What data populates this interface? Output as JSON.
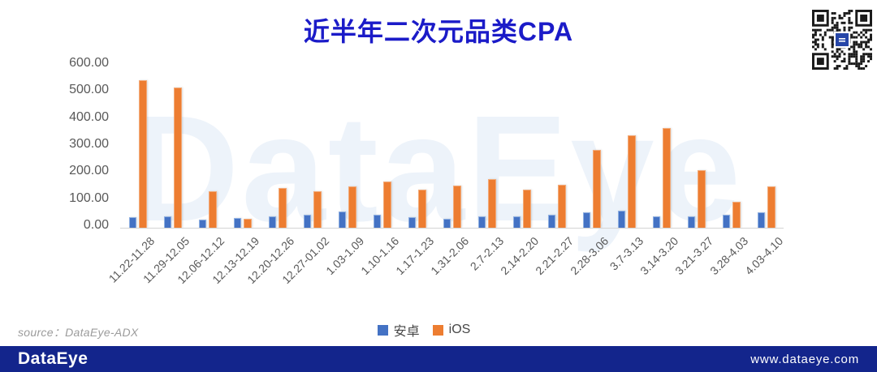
{
  "title": "近半年二次元品类CPA",
  "chart_data": {
    "type": "bar",
    "title": "近半年二次元品类CPA",
    "categories": [
      "11.22-11.28",
      "11.29-12.05",
      "12.06-12.12",
      "12.13-12.19",
      "12.20-12.26",
      "12.27-01.02",
      "1.03-1.09",
      "1.10-1.16",
      "1.17-1.23",
      "1.31-2.06",
      "2.7-2.13",
      "2.14-2.20",
      "2.21-2.27",
      "2.28-3.06",
      "3.7-3.13",
      "3.14-3.20",
      "3.21-3.27",
      "3.28-4.03",
      "4.03-4.10"
    ],
    "series": [
      {
        "name": "安卓",
        "color": "#4472C4",
        "values": [
          38,
          43,
          31,
          36,
          43,
          47,
          59,
          49,
          38,
          33,
          43,
          43,
          49,
          56,
          63,
          43,
          41,
          49,
          56
        ]
      },
      {
        "name": "iOS",
        "color": "#ED7D31",
        "values": [
          545,
          520,
          134,
          32,
          146,
          134,
          152,
          171,
          141,
          155,
          181,
          141,
          158,
          287,
          341,
          368,
          214,
          96,
          152
        ]
      }
    ],
    "ylim": [
      0,
      600
    ],
    "yticks": [
      0,
      100,
      200,
      300,
      400,
      500,
      600
    ],
    "ytick_labels": [
      "0.00",
      "100.00",
      "200.00",
      "300.00",
      "400.00",
      "500.00",
      "600.00"
    ],
    "grid": false,
    "legend_position": "bottom",
    "watermark": "DataEye"
  },
  "source_label": "source：DataEye-ADX",
  "footer": {
    "logo": "DataEye",
    "url": "www.dataeye.com"
  },
  "colors": {
    "title": "#1B1BC8",
    "android": "#4472C4",
    "ios": "#ED7D31",
    "footer_bg": "#13258C",
    "axis_text": "#595959",
    "watermark_text": "#EDF3FA",
    "axis_line": "#D4D4D4"
  }
}
